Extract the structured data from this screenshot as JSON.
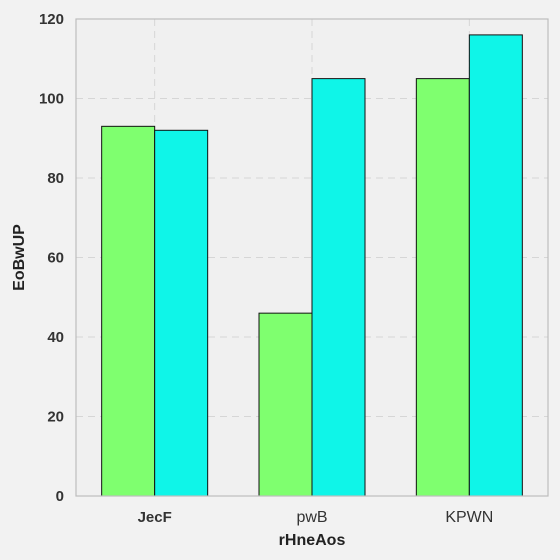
{
  "chart_data": {
    "type": "bar",
    "title": "",
    "xlabel": "rHneAos",
    "ylabel": "EoBwUP",
    "categories": [
      "JecF",
      "pwB",
      "KPWN"
    ],
    "category_bold": [
      true,
      false,
      false
    ],
    "series": [
      {
        "values": [
          93,
          46,
          105
        ],
        "color": "#7fff6f"
      },
      {
        "values": [
          92,
          105,
          116
        ],
        "color": "#0ff5e8"
      }
    ],
    "ylim": [
      0,
      120
    ],
    "yticks": [
      0,
      20,
      40,
      60,
      80,
      100,
      120
    ],
    "grid": true,
    "legend": "none"
  },
  "colors": {
    "background": "#f2f2f2",
    "plot_background": "#f0f0f0",
    "axis_frame": "#bdbdbd",
    "grid": "#d6d6d6"
  }
}
